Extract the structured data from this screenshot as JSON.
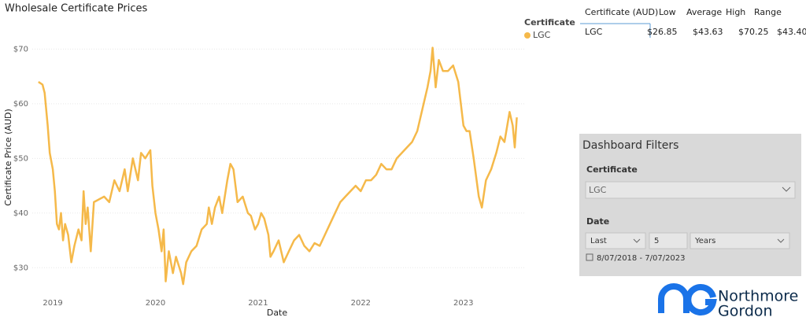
{
  "chart_data": {
    "type": "line",
    "title": "Wholesale Certificate Prices",
    "x_label": "Date",
    "y_label": "Certificate Price (AUD)",
    "legend_title": "Certificate",
    "x": [
      2018.86,
      2018.9,
      2018.92,
      2018.95,
      2018.97,
      2019.0,
      2019.02,
      2019.04,
      2019.06,
      2019.08,
      2019.1,
      2019.12,
      2019.15,
      2019.18,
      2019.21,
      2019.25,
      2019.28,
      2019.3,
      2019.32,
      2019.34,
      2019.37,
      2019.4,
      2019.45,
      2019.5,
      2019.55,
      2019.6,
      2019.65,
      2019.7,
      2019.73,
      2019.78,
      2019.83,
      2019.86,
      2019.9,
      2019.95,
      2019.97,
      2020.0,
      2020.03,
      2020.06,
      2020.08,
      2020.1,
      2020.13,
      2020.17,
      2020.2,
      2020.25,
      2020.27,
      2020.3,
      2020.35,
      2020.4,
      2020.45,
      2020.5,
      2020.52,
      2020.55,
      2020.58,
      2020.62,
      2020.65,
      2020.7,
      2020.73,
      2020.76,
      2020.78,
      2020.8,
      2020.85,
      2020.9,
      2020.93,
      2020.97,
      2021.0,
      2021.03,
      2021.06,
      2021.1,
      2021.12,
      2021.15,
      2021.2,
      2021.25,
      2021.3,
      2021.35,
      2021.4,
      2021.45,
      2021.5,
      2021.55,
      2021.6,
      2021.65,
      2021.7,
      2021.75,
      2021.8,
      2021.85,
      2021.9,
      2021.95,
      2022.0,
      2022.05,
      2022.1,
      2022.15,
      2022.2,
      2022.25,
      2022.3,
      2022.35,
      2022.4,
      2022.45,
      2022.5,
      2022.55,
      2022.6,
      2022.65,
      2022.68,
      2022.7,
      2022.73,
      2022.76,
      2022.8,
      2022.85,
      2022.9,
      2022.95,
      2023.0,
      2023.03,
      2023.06,
      2023.1,
      2023.15,
      2023.18,
      2023.22,
      2023.27,
      2023.32,
      2023.36,
      2023.4,
      2023.45,
      2023.48,
      2023.5,
      2023.52
    ],
    "series": [
      {
        "name": "LGC",
        "color": "#f5b94a",
        "values": [
          64,
          63.5,
          62,
          56,
          51,
          48,
          44,
          38,
          37,
          40,
          35,
          38,
          36,
          31,
          34,
          37,
          35,
          44,
          38,
          41,
          33,
          42,
          42.5,
          43,
          42,
          46,
          44,
          48,
          44,
          50,
          46,
          51,
          50,
          51.5,
          45,
          40,
          37,
          33,
          37,
          27.5,
          33,
          29,
          32,
          29,
          27,
          31,
          33,
          34,
          37,
          38,
          41,
          38,
          41,
          43,
          40,
          46,
          49,
          48,
          45,
          42,
          43,
          40,
          39.5,
          37,
          38,
          40,
          39,
          36,
          32,
          33,
          35,
          31,
          33,
          35,
          36,
          34,
          33,
          34.5,
          34,
          36,
          38,
          40,
          42,
          43,
          44,
          45,
          44,
          46,
          46,
          47,
          49,
          48,
          48,
          50,
          51,
          52,
          53,
          55,
          59,
          63,
          66,
          70.25,
          63,
          68,
          66,
          66,
          67,
          64,
          56,
          55,
          55,
          50,
          43,
          41,
          46,
          48,
          51,
          54,
          53,
          58.5,
          56,
          52,
          57.5
        ]
      }
    ],
    "xlim": [
      2018.8,
      2023.6
    ],
    "xticks": [
      2019,
      2020,
      2021,
      2022,
      2023
    ],
    "ylim": [
      25,
      72.5
    ],
    "yticks": [
      {
        "value": 30,
        "label": "$30"
      },
      {
        "value": 40,
        "label": "$40"
      },
      {
        "value": 50,
        "label": "$50"
      },
      {
        "value": 60,
        "label": "$60"
      },
      {
        "value": 70,
        "label": "$70"
      }
    ],
    "grid": true
  },
  "table": {
    "columns": [
      "Certificate (AUD)",
      "Low",
      "Average",
      "High",
      "Range"
    ],
    "rows": [
      [
        "LGC",
        "$26.85",
        "$43.63",
        "$70.25",
        "$43.40"
      ]
    ]
  },
  "filters": {
    "title": "Dashboard Filters",
    "certificate_label": "Certificate",
    "certificate_value": "LGC",
    "date_label": "Date",
    "period_mode": "Last",
    "period_count": "5",
    "period_unit": "Years",
    "date_range": "8/07/2018 - 7/07/2023"
  },
  "logo": {
    "line1": "Northmore",
    "line2": "Gordon"
  }
}
